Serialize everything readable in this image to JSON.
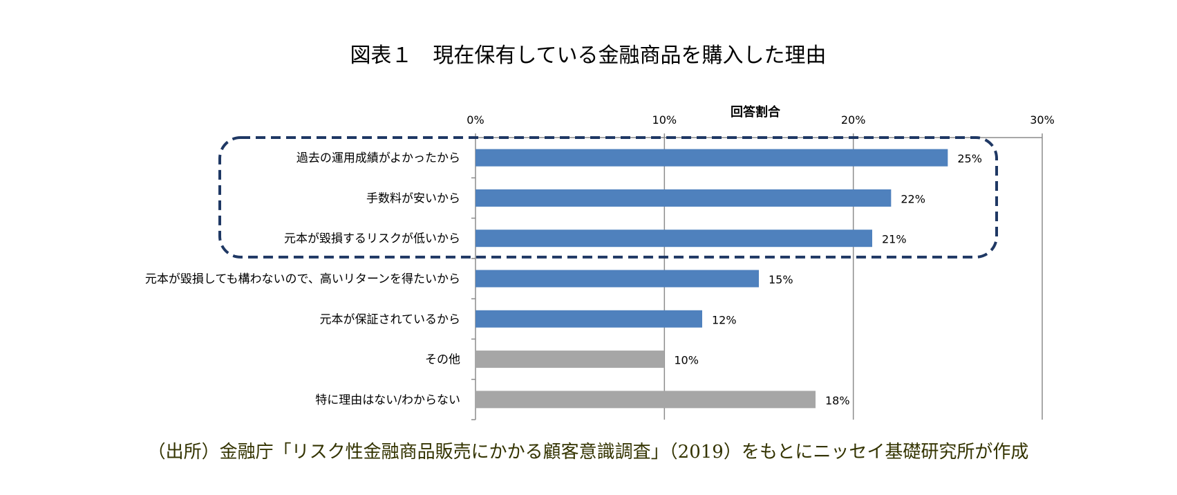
{
  "chart_data": {
    "type": "bar",
    "orientation": "horizontal",
    "title": "図表１　現在保有している金融商品を購入した理由",
    "xlabel": "回答割合",
    "ylabel": "",
    "xlim": [
      0,
      30
    ],
    "x_ticks": [
      "0%",
      "10%",
      "20%",
      "30%"
    ],
    "grid": true,
    "categories": [
      "過去の運用成績がよかったから",
      "手数料が安いから",
      "元本が毀損するリスクが低いから",
      "元本が毀損しても構わないので、高いリターンを得たいから",
      "元本が保証されているから",
      "その他",
      "特に理由はない/わからない"
    ],
    "values": [
      25,
      22,
      21,
      15,
      12,
      10,
      18
    ],
    "value_labels": [
      "25%",
      "22%",
      "21%",
      "15%",
      "12%",
      "10%",
      "18%"
    ],
    "bar_colors": [
      "#4f81bd",
      "#4f81bd",
      "#4f81bd",
      "#4f81bd",
      "#4f81bd",
      "#a6a6a6",
      "#a6a6a6"
    ],
    "highlight": {
      "style": "dashed-rounded-box",
      "color": "#1f3864",
      "categories_highlighted": [
        0,
        1,
        2
      ]
    },
    "source": "（出所）金融庁「リスク性金融商品販売にかかる顧客意識調査」（2019）をもとにニッセイ基礎研究所が作成"
  }
}
